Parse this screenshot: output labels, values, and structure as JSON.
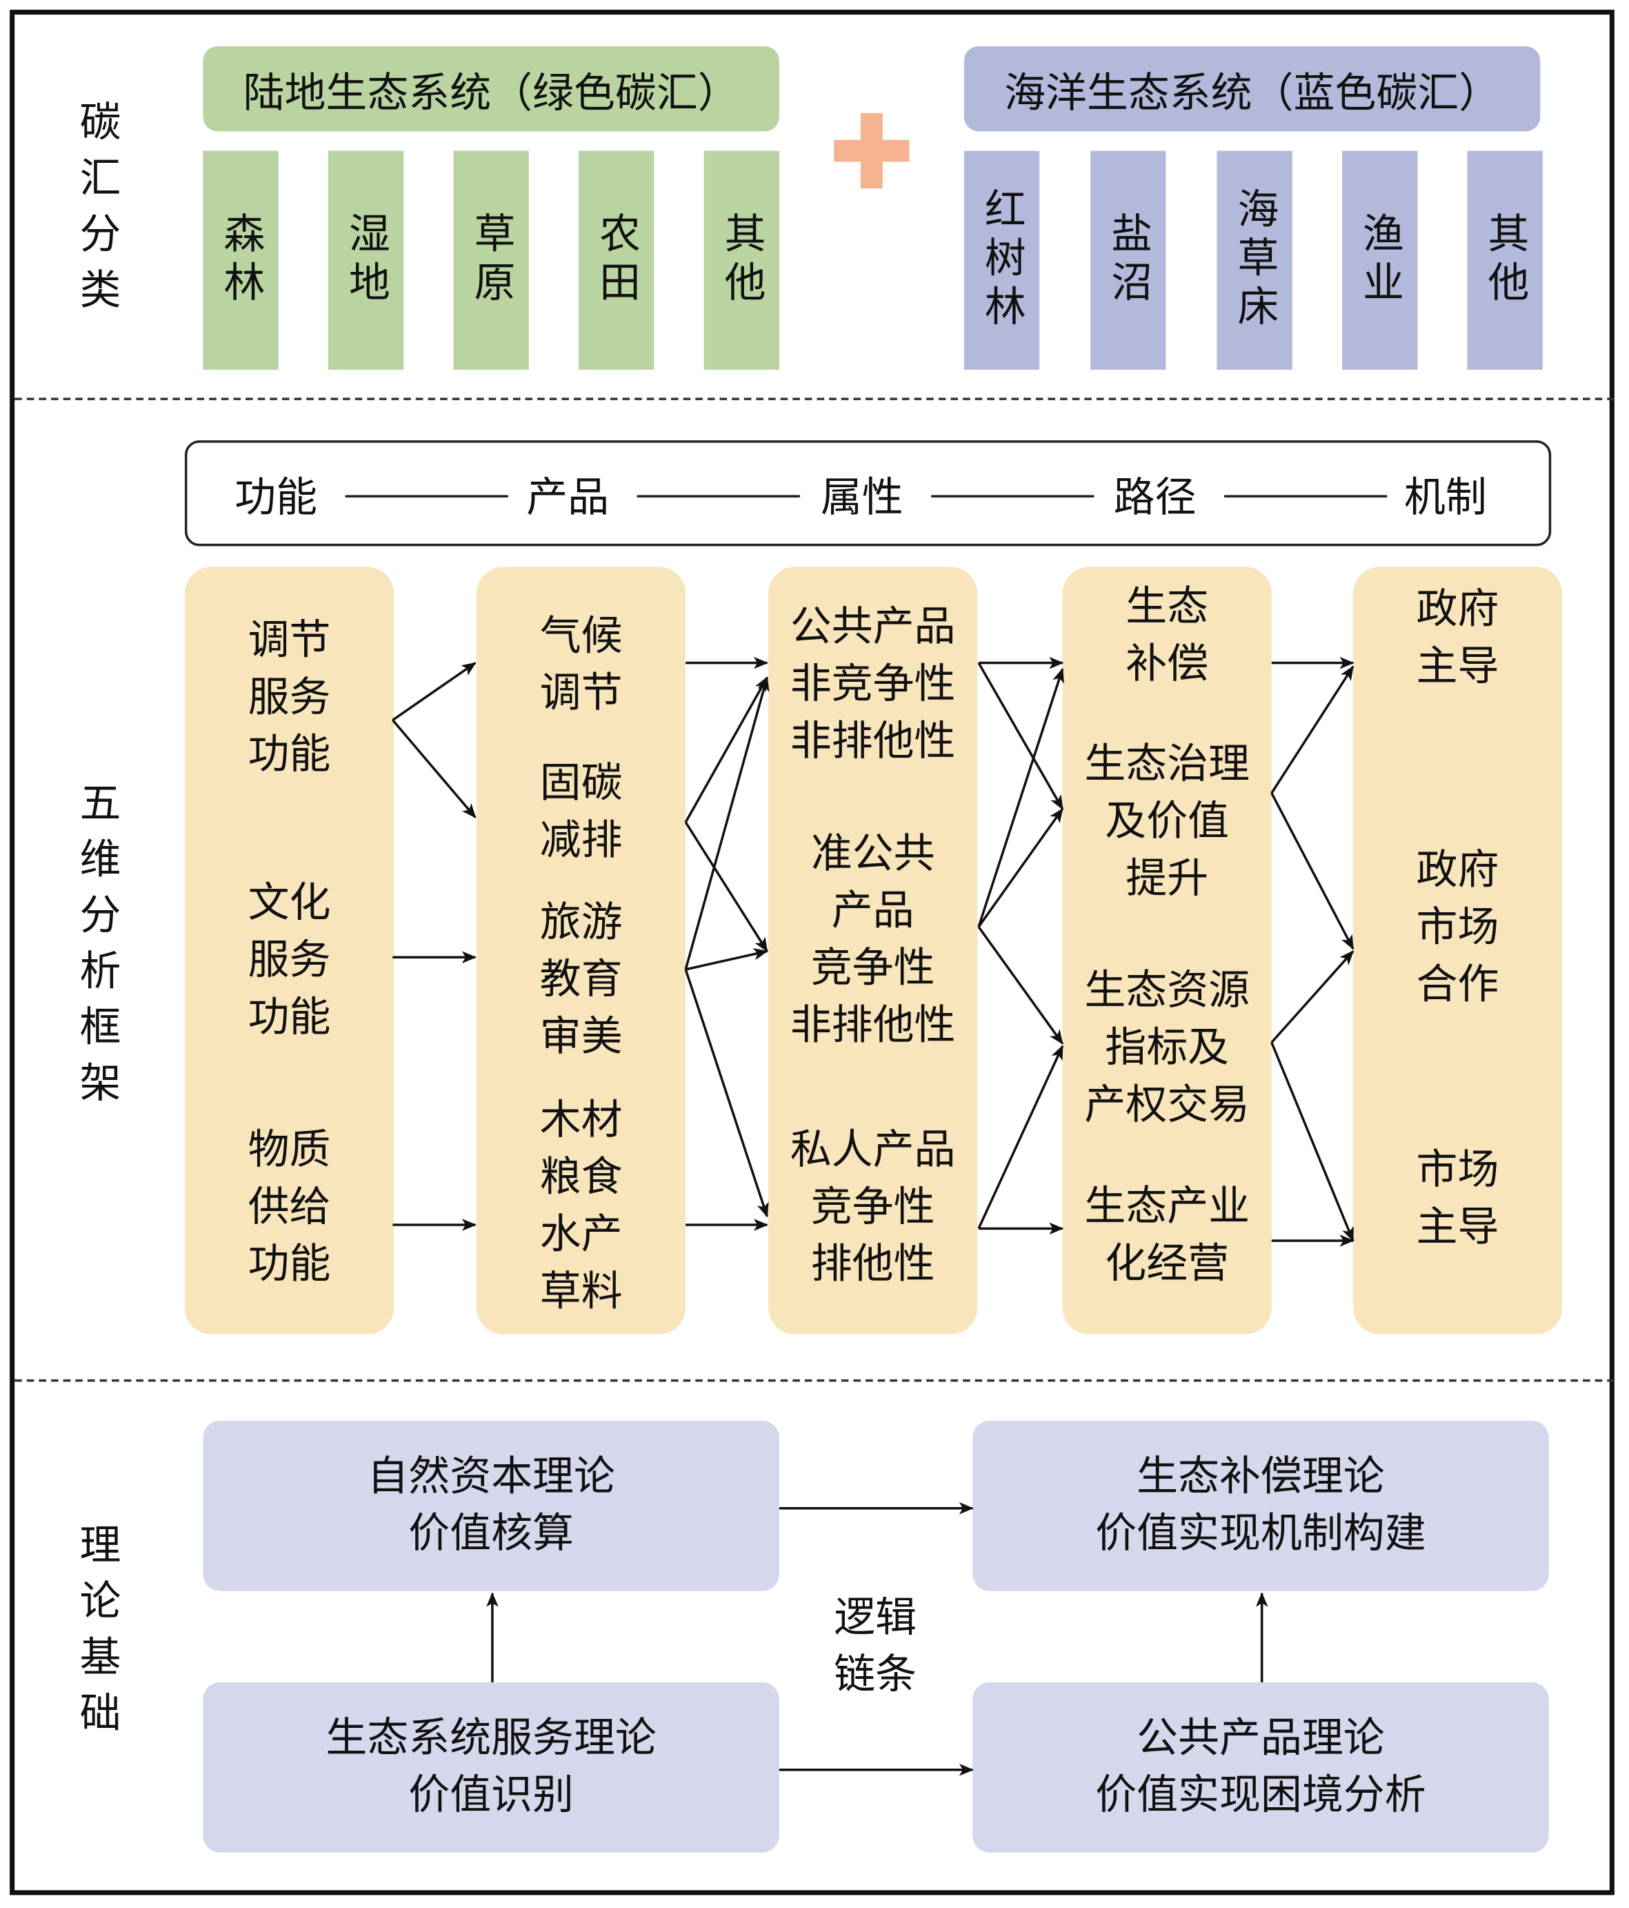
{
  "sections": {
    "classification": "碳汇分类",
    "framework": "五维分析框架",
    "theory": "理论基础"
  },
  "terrestrial": {
    "title": "陆地生态系统（绿色碳汇）",
    "items": [
      "森林",
      "湿地",
      "草原",
      "农田",
      "其他"
    ],
    "color": "#b9d3a1"
  },
  "marine": {
    "title": "海洋生态系统（蓝色碳汇）",
    "items": [
      "红树林",
      "盐沼",
      "海草床",
      "渔业",
      "其他"
    ],
    "color": "#b3b9da"
  },
  "plus_color": "#f5b38f",
  "chain": [
    "功能",
    "产品",
    "属性",
    "路径",
    "机制"
  ],
  "columns": [
    [
      "调节\n服务\n功能",
      "文化\n服务\n功能",
      "物质\n供给\n功能"
    ],
    [
      "气候\n调节",
      "固碳\n减排",
      "旅游\n教育\n审美",
      "木材\n粮食\n水产\n草料"
    ],
    [
      "公共产品\n非竞争性\n非排他性",
      "准公共\n产品\n竞争性\n非排他性",
      "私人产品\n竞争性\n排他性"
    ],
    [
      "生态\n补偿",
      "生态治理\n及价值\n提升",
      "生态资源\n指标及\n产权交易",
      "生态产业\n化经营"
    ],
    [
      "政府\n主导",
      "政府\n市场\n合作",
      "市场\n主导"
    ]
  ],
  "theory": {
    "natural_capital": "自然资本理论\n价值核算",
    "eco_compensation": "生态补偿理论\n价值实现机制构建",
    "ecosystem_services": "生态系统服务理论\n价值识别",
    "public_goods": "公共产品理论\n价值实现困境分析",
    "logic_chain": "逻辑\n链条"
  }
}
